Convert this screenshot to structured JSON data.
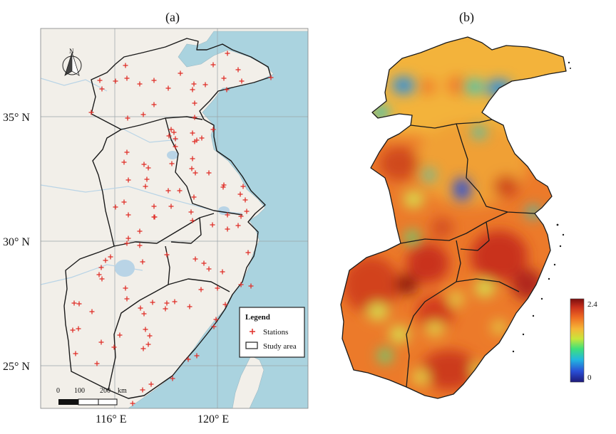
{
  "panels": {
    "a": {
      "label": "(a)",
      "lat_labels": [
        "35° N",
        "30° N",
        "25° N"
      ],
      "lon_labels": [
        "116° E",
        "120° E"
      ],
      "north_arrow_label": "N",
      "scale_bar": {
        "ticks": [
          "0",
          "100",
          "200"
        ],
        "unit": "km"
      },
      "legend": {
        "title": "Legend",
        "items": [
          "Stations",
          "Study area"
        ]
      },
      "colors": {
        "sea": "#aad3df",
        "land": "#f2efe9",
        "station": "#e0302a",
        "boundary": "#1a1a1a"
      }
    },
    "b": {
      "label": "(b)",
      "colorbar": {
        "max_label": "2.4",
        "min_label": "0"
      },
      "colormap": [
        "#1e1a7a",
        "#2a4fd6",
        "#22b7e0",
        "#3fe07a",
        "#c8e63a",
        "#f5b637",
        "#ee6a22",
        "#c9301c",
        "#7a0e0e"
      ]
    }
  }
}
